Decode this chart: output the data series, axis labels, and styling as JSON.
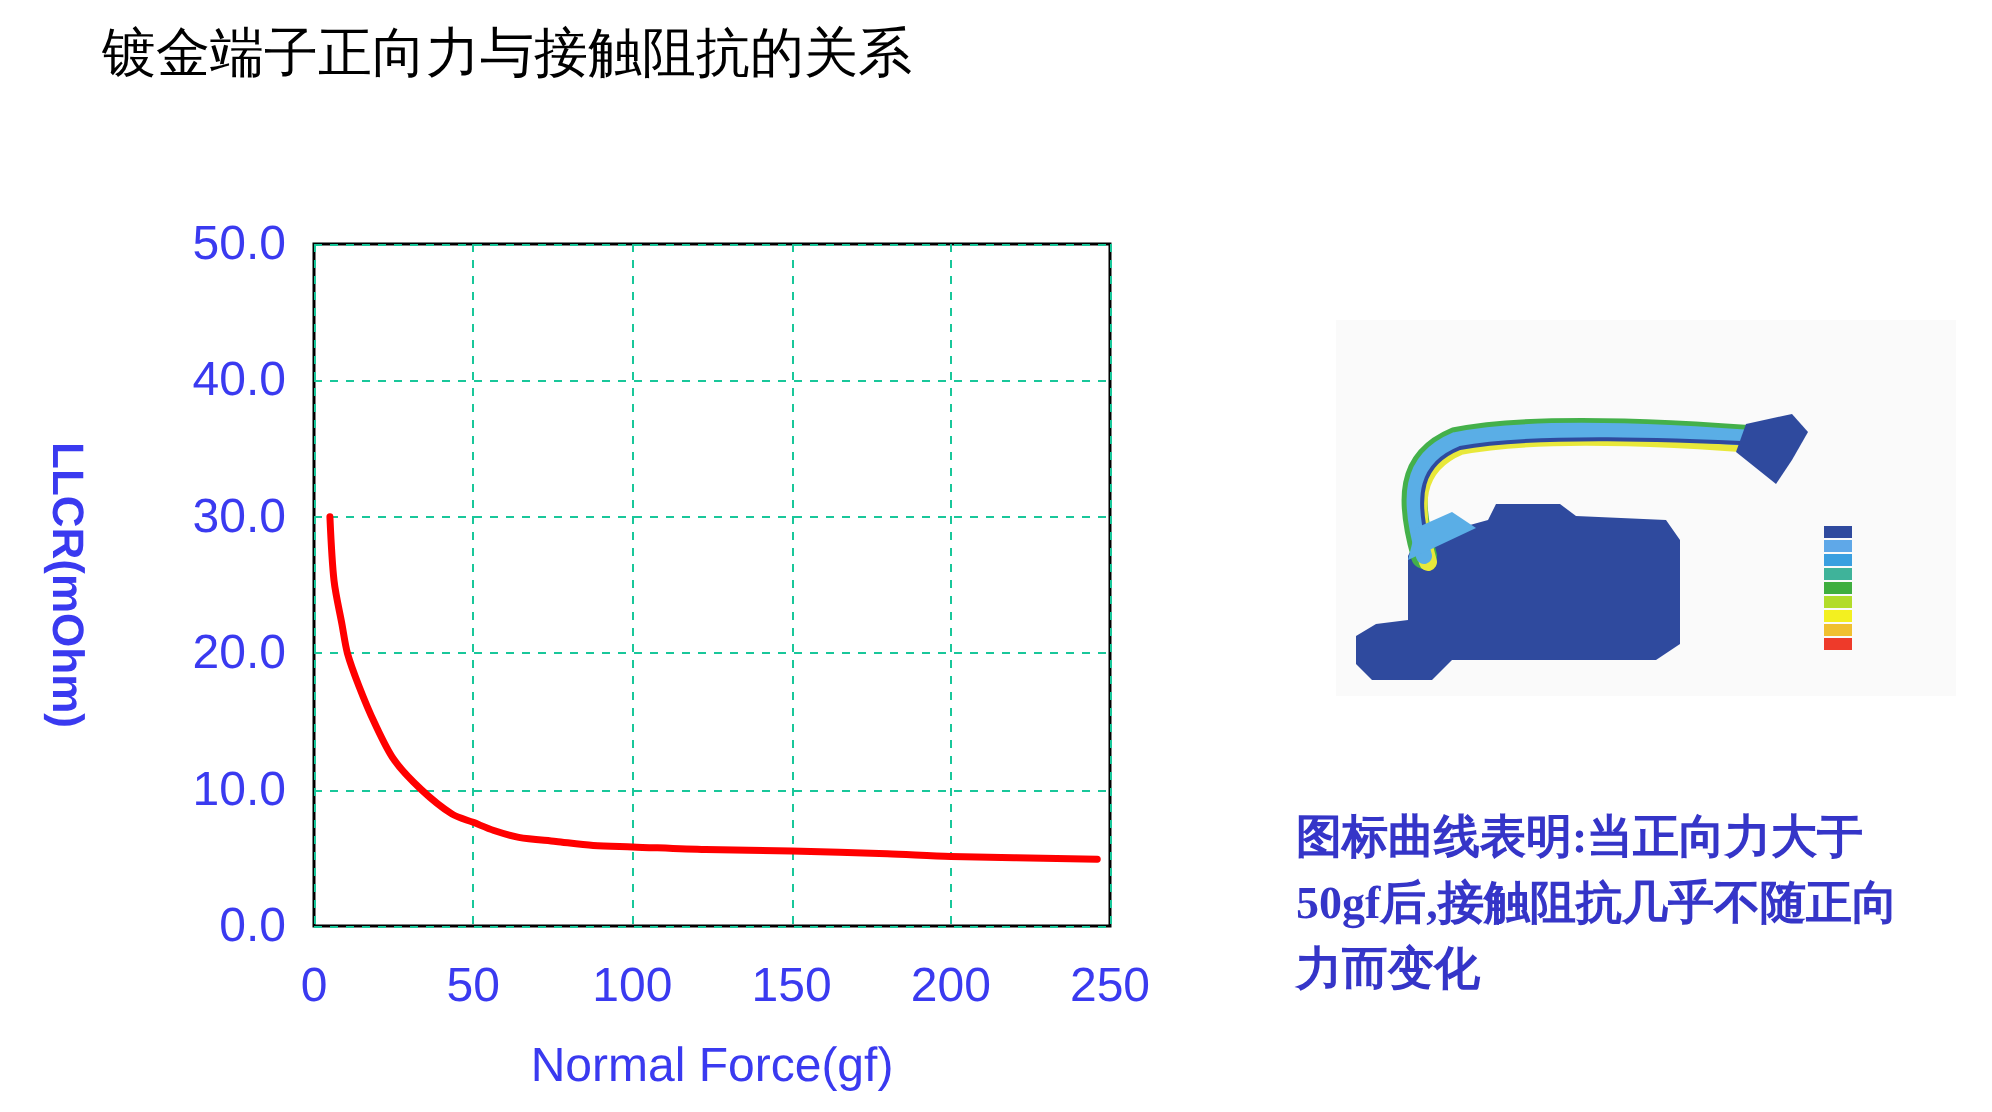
{
  "chart_data": {
    "type": "line",
    "title": "镀金端子正向力与接触阻抗的关系",
    "xlabel": "Normal Force(gf)",
    "ylabel": "LLCR(mOhm)",
    "x": [
      5,
      6.3,
      8.8,
      10.5,
      14.1,
      19,
      25.1,
      33.7,
      43.4,
      50,
      56.5,
      64.3,
      76,
      87.7,
      100,
      123,
      150,
      180,
      200,
      246
    ],
    "series": [
      {
        "color": "#ff0000",
        "values": [
          30,
          25.3,
          22.1,
          20,
          17.6,
          14.9,
          12.2,
          10,
          8.2,
          7.6,
          7,
          6.5,
          6.2,
          5.9,
          5.8,
          5.6,
          5.5,
          5.3,
          5.1,
          4.9
        ]
      }
    ],
    "xlim": [
      0,
      250
    ],
    "xticks": [
      0,
      50,
      100,
      150,
      200,
      250
    ],
    "ylim": [
      0,
      50
    ],
    "yticks": [
      {
        "value": 0,
        "label": "0.0"
      },
      {
        "value": 10,
        "label": "10.0"
      },
      {
        "value": 20,
        "label": "20.0"
      },
      {
        "value": 30,
        "label": "30.0"
      },
      {
        "value": 40,
        "label": "40.0"
      },
      {
        "value": 50,
        "label": "50.0"
      }
    ],
    "grid": true,
    "annotations": [
      "图标曲线表明:当正向力大于50gf后,接触阻抗几乎不随正向力而变化"
    ]
  }
}
